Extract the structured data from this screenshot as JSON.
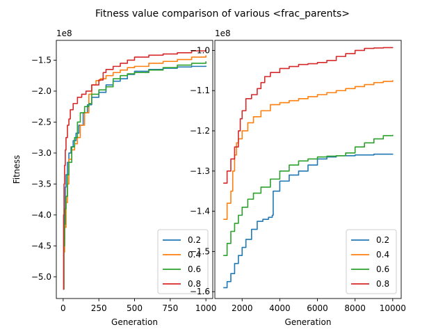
{
  "title": "Fitness value comparison of various <frac_parents>",
  "chart_data": [
    {
      "type": "line",
      "xlabel": "Generation",
      "ylabel": "Fitness",
      "offset_label": "1e8",
      "xlim": [
        -48,
        1048
      ],
      "ylim": [
        -5.35,
        -1.18
      ],
      "xticks": [
        0,
        250,
        500,
        750,
        1000
      ],
      "xtick_labels": [
        "0",
        "250",
        "500",
        "750",
        "1000"
      ],
      "yticks": [
        -5.0,
        -4.5,
        -4.0,
        -3.5,
        -3.0,
        -2.5,
        -2.0,
        -1.5
      ],
      "ytick_labels": [
        "−5.0",
        "−4.5",
        "−4.0",
        "−3.5",
        "−3.0",
        "−2.5",
        "−2.0",
        "−1.5"
      ],
      "legend_loc": "lower right",
      "series": [
        {
          "name": "0.2",
          "color": "#1f77b4",
          "x": [
            0,
            5,
            10,
            15,
            20,
            30,
            40,
            55,
            70,
            90,
            110,
            140,
            170,
            200,
            250,
            300,
            350,
            400,
            450,
            500,
            600,
            700,
            800,
            900,
            1000
          ],
          "y": [
            -5.2,
            -4.4,
            -3.9,
            -3.55,
            -3.35,
            -3.15,
            -3.0,
            -2.9,
            -2.8,
            -2.68,
            -2.55,
            -2.35,
            -2.22,
            -2.1,
            -2.02,
            -1.9,
            -1.84,
            -1.8,
            -1.73,
            -1.68,
            -1.65,
            -1.63,
            -1.61,
            -1.6,
            -1.59
          ]
        },
        {
          "name": "0.4",
          "color": "#ff7f0e",
          "x": [
            0,
            5,
            10,
            20,
            30,
            40,
            60,
            80,
            100,
            120,
            150,
            180,
            200,
            230,
            260,
            300,
            350,
            400,
            450,
            500,
            600,
            700,
            800,
            900,
            1000
          ],
          "y": [
            -5.2,
            -4.6,
            -4.2,
            -3.8,
            -3.5,
            -3.1,
            -2.95,
            -2.85,
            -2.75,
            -2.55,
            -2.35,
            -2.05,
            -1.9,
            -1.83,
            -1.8,
            -1.75,
            -1.7,
            -1.66,
            -1.62,
            -1.6,
            -1.55,
            -1.52,
            -1.49,
            -1.45,
            -1.42
          ]
        },
        {
          "name": "0.6",
          "color": "#2ca02c",
          "x": [
            0,
            5,
            10,
            15,
            20,
            30,
            40,
            60,
            80,
            100,
            120,
            150,
            180,
            200,
            250,
            300,
            350,
            400,
            450,
            500,
            600,
            700,
            800,
            900,
            1000
          ],
          "y": [
            -5.2,
            -4.5,
            -4.15,
            -3.9,
            -3.7,
            -3.35,
            -3.15,
            -2.9,
            -2.75,
            -2.5,
            -2.35,
            -2.25,
            -2.2,
            -2.05,
            -1.98,
            -1.93,
            -1.8,
            -1.75,
            -1.72,
            -1.7,
            -1.66,
            -1.62,
            -1.58,
            -1.55,
            -1.52
          ]
        },
        {
          "name": "0.8",
          "color": "#d62728",
          "x": [
            0,
            3,
            6,
            10,
            15,
            20,
            30,
            40,
            50,
            70,
            100,
            130,
            160,
            200,
            250,
            280,
            300,
            350,
            400,
            450,
            500,
            600,
            700,
            800,
            900,
            1000
          ],
          "y": [
            -5.2,
            -4.0,
            -3.5,
            -3.2,
            -2.95,
            -2.75,
            -2.55,
            -2.45,
            -2.3,
            -2.2,
            -2.1,
            -2.05,
            -2.0,
            -1.9,
            -1.82,
            -1.7,
            -1.65,
            -1.6,
            -1.55,
            -1.5,
            -1.45,
            -1.42,
            -1.4,
            -1.38,
            -1.35,
            -1.33
          ]
        }
      ]
    },
    {
      "type": "line",
      "xlabel": "Generation",
      "ylabel": "",
      "offset_label": "1e8",
      "xlim": [
        550,
        10450
      ],
      "ylim": [
        -1.617,
        -0.975
      ],
      "xticks": [
        2000,
        4000,
        6000,
        8000,
        10000
      ],
      "xtick_labels": [
        "2000",
        "4000",
        "6000",
        "8000",
        "10000"
      ],
      "yticks": [
        -1.6,
        -1.5,
        -1.4,
        -1.3,
        -1.2,
        -1.1,
        -1.0
      ],
      "ytick_labels": [
        "−1.6",
        "−1.5",
        "−1.4",
        "−1.3",
        "−1.2",
        "−1.1",
        "−1.0"
      ],
      "legend_loc": "lower right",
      "series": [
        {
          "name": "0.2",
          "color": "#1f77b4",
          "x": [
            1000,
            1200,
            1400,
            1600,
            1800,
            2000,
            2200,
            2500,
            2800,
            3100,
            3400,
            3600,
            3650,
            4000,
            4500,
            5000,
            5500,
            6000,
            6500,
            7000,
            8000,
            9000,
            10000
          ],
          "y": [
            -1.59,
            -1.575,
            -1.555,
            -1.53,
            -1.51,
            -1.49,
            -1.47,
            -1.445,
            -1.425,
            -1.42,
            -1.415,
            -1.41,
            -1.35,
            -1.325,
            -1.31,
            -1.3,
            -1.285,
            -1.27,
            -1.265,
            -1.262,
            -1.26,
            -1.258,
            -1.257
          ]
        },
        {
          "name": "0.4",
          "color": "#ff7f0e",
          "x": [
            1000,
            1200,
            1400,
            1500,
            1600,
            1700,
            1800,
            2000,
            2300,
            2600,
            3000,
            3500,
            4000,
            4500,
            5000,
            5500,
            6000,
            6500,
            7000,
            7500,
            8000,
            8500,
            9000,
            9500,
            10000
          ],
          "y": [
            -1.42,
            -1.38,
            -1.35,
            -1.3,
            -1.26,
            -1.23,
            -1.22,
            -1.2,
            -1.18,
            -1.165,
            -1.15,
            -1.135,
            -1.13,
            -1.125,
            -1.12,
            -1.115,
            -1.11,
            -1.105,
            -1.1,
            -1.095,
            -1.09,
            -1.085,
            -1.08,
            -1.077,
            -1.074
          ]
        },
        {
          "name": "0.6",
          "color": "#2ca02c",
          "x": [
            1000,
            1200,
            1400,
            1600,
            1800,
            2000,
            2300,
            2600,
            3000,
            3500,
            4000,
            4500,
            5000,
            5500,
            6000,
            6500,
            7000,
            7500,
            8000,
            8500,
            9000,
            9500,
            10000
          ],
          "y": [
            -1.51,
            -1.48,
            -1.45,
            -1.43,
            -1.41,
            -1.39,
            -1.37,
            -1.355,
            -1.34,
            -1.32,
            -1.3,
            -1.285,
            -1.275,
            -1.27,
            -1.265,
            -1.263,
            -1.262,
            -1.255,
            -1.24,
            -1.23,
            -1.22,
            -1.212,
            -1.21
          ]
        },
        {
          "name": "0.8",
          "color": "#d62728",
          "x": [
            1000,
            1200,
            1400,
            1600,
            1800,
            1900,
            2000,
            2200,
            2500,
            2800,
            3000,
            3200,
            3500,
            4000,
            4500,
            5000,
            5500,
            6000,
            6500,
            7000,
            7500,
            8000,
            8500,
            9000,
            9500,
            10000
          ],
          "y": [
            -1.33,
            -1.3,
            -1.27,
            -1.24,
            -1.2,
            -1.17,
            -1.15,
            -1.12,
            -1.11,
            -1.095,
            -1.08,
            -1.065,
            -1.055,
            -1.045,
            -1.04,
            -1.035,
            -1.033,
            -1.03,
            -1.025,
            -1.015,
            -1.008,
            -1.0,
            -0.995,
            -0.994,
            -0.993,
            -0.992
          ]
        }
      ]
    }
  ]
}
